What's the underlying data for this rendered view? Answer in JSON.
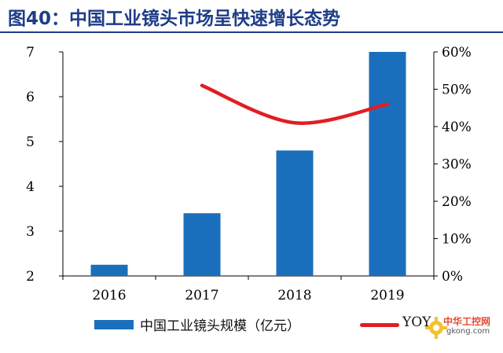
{
  "title": "图40：中国工业镜头市场呈快速增长态势",
  "chart_data": {
    "type": "bar",
    "categories": [
      "2016",
      "2017",
      "2018",
      "2019"
    ],
    "series": [
      {
        "name": "中国工业镜头规模（亿元）",
        "type": "bar",
        "axis": "left",
        "color": "#1a6fbd",
        "values": [
          2.25,
          3.4,
          4.8,
          7.0
        ]
      },
      {
        "name": "YOY",
        "type": "line",
        "axis": "right",
        "color": "#e01e24",
        "values": [
          null,
          51,
          41,
          46
        ]
      }
    ],
    "y_left": {
      "min": 2,
      "max": 7,
      "ticks": [
        "2",
        "3",
        "4",
        "5",
        "6",
        "7"
      ]
    },
    "y_right": {
      "min": 0,
      "max": 60,
      "ticks": [
        "0%",
        "10%",
        "20%",
        "30%",
        "40%",
        "50%",
        "60%"
      ]
    },
    "grid": false,
    "legend_position": "bottom"
  },
  "watermark": {
    "line1": "中华工控网",
    "line2": "gkong.com"
  }
}
